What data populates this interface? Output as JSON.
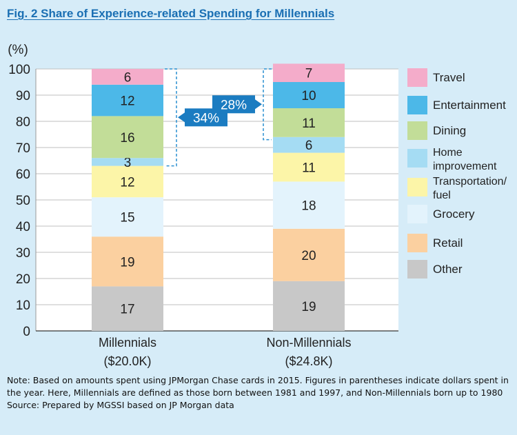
{
  "figure": {
    "title": "Fig. 2  Share of Experience-related Spending for Millennials",
    "note": "Note: Based on amounts spent using JPMorgan Chase cards in 2015. Figures in parentheses indicate dollars spent in the year. Here, Millennials are defined as those born between 1981 and 1997, and Non-Millennials born up to 1980",
    "source": "Source: Prepared by MGSSI based on JP Morgan data"
  },
  "chart_data": {
    "type": "bar",
    "stacked": true,
    "title": "Fig. 2  Share of Experience-related Spending for Millennials",
    "ylabel": "(%)",
    "ylim": [
      0,
      100
    ],
    "yticks": [
      0,
      10,
      20,
      30,
      40,
      50,
      60,
      70,
      80,
      90,
      100
    ],
    "categories": [
      {
        "name": "Millennials",
        "amount": "($20.0K)"
      },
      {
        "name": "Non-Millennials",
        "amount": "($24.8K)"
      }
    ],
    "series": [
      {
        "name": "Other",
        "color": "#c8c8c8",
        "values": [
          17,
          19
        ]
      },
      {
        "name": "Retail",
        "color": "#fbd0a0",
        "values": [
          19,
          20
        ]
      },
      {
        "name": "Grocery",
        "color": "#e3f3fc",
        "values": [
          15,
          18
        ]
      },
      {
        "name": "Transportation/ fuel",
        "color": "#fcf5a8",
        "values": [
          12,
          11
        ]
      },
      {
        "name": "Home improvement",
        "color": "#a5dcf3",
        "values": [
          3,
          6
        ]
      },
      {
        "name": "Dining",
        "color": "#c2dd98",
        "values": [
          16,
          11
        ]
      },
      {
        "name": "Entertainment",
        "color": "#4cb8e8",
        "values": [
          12,
          10
        ]
      },
      {
        "name": "Travel",
        "color": "#f4acca",
        "values": [
          6,
          7
        ]
      }
    ],
    "legend_order": [
      "Travel",
      "Entertainment",
      "Dining",
      "Home improvement",
      "Transportation/ fuel",
      "Grocery",
      "Retail",
      "Other"
    ],
    "annotations": [
      {
        "text": "34%",
        "category": "Millennials",
        "from": 63,
        "to": 100
      },
      {
        "text": "28%",
        "category": "Non-Millennials",
        "from": 73,
        "to": 100
      }
    ],
    "legend_position": "right",
    "colors": {
      "annotation_box": "#1b7cc1",
      "title": "#1a6fb3",
      "plot_bg": "#ffffff",
      "page_bg": "#d6ecf8"
    }
  }
}
